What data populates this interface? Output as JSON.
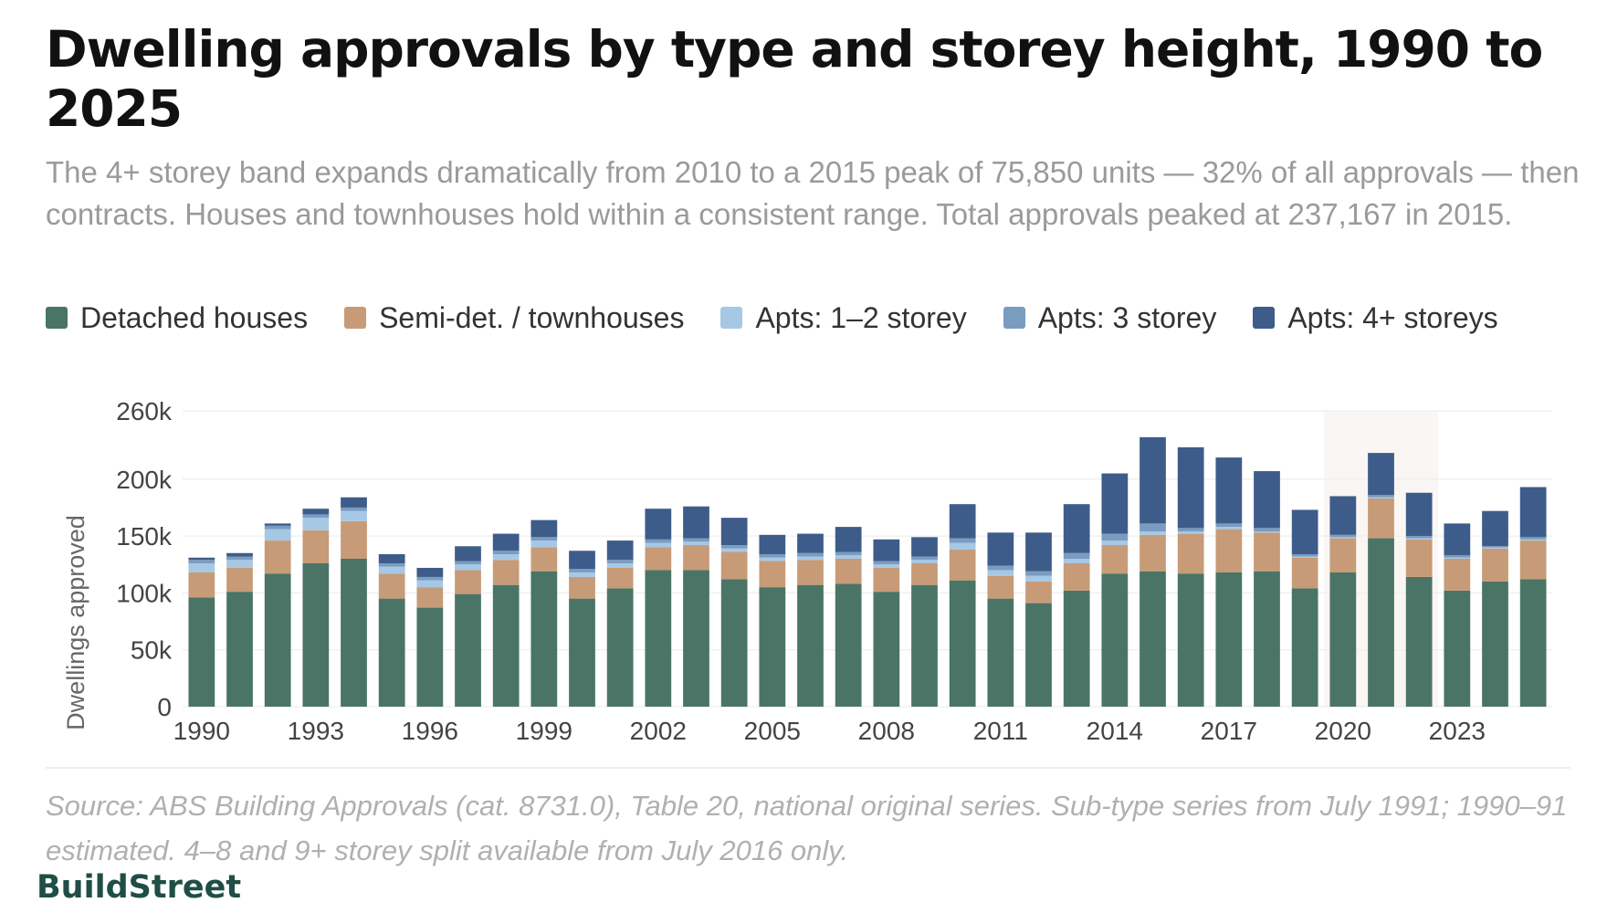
{
  "title": "Dwelling approvals by type and storey height, 1990 to 2025",
  "subtitle": "The 4+ storey band expands dramatically from 2010 to a 2015 peak of 75,850 units — 32% of all approvals — then contracts. Houses and townhouses hold within a consistent range. Total approvals peaked at 237,167 in 2015.",
  "source": "Source: ABS Building Approvals (cat. 8731.0), Table 20, national original series. Sub-type series from July 1991; 1990–91 estimated. 4–8 and 9+ storey split available from July 2016 only.",
  "brand": "BuildStreet",
  "chart_data": {
    "type": "bar",
    "stacked": true,
    "ylabel": "Dwellings approved",
    "xlabel": "",
    "ylim": [
      0,
      260000
    ],
    "yticks": [
      0,
      50000,
      100000,
      150000,
      200000,
      260000
    ],
    "ytick_labels": [
      "0",
      "50k",
      "100k",
      "150k",
      "200k",
      "260k"
    ],
    "xtick_labels": [
      "1990",
      "1993",
      "1996",
      "1999",
      "2002",
      "2005",
      "2008",
      "2011",
      "2014",
      "2017",
      "2020",
      "2023"
    ],
    "grid": true,
    "legend_position": "top-left",
    "highlight": {
      "from": "2020",
      "to": "2022",
      "color": "#faf6f3"
    },
    "categories": [
      "1990",
      "1991",
      "1992",
      "1993",
      "1994",
      "1995",
      "1996",
      "1997",
      "1998",
      "1999",
      "2000",
      "2001",
      "2002",
      "2003",
      "2004",
      "2005",
      "2006",
      "2007",
      "2008",
      "2009",
      "2010",
      "2011",
      "2012",
      "2013",
      "2014",
      "2015",
      "2016",
      "2017",
      "2018",
      "2019",
      "2020",
      "2021",
      "2022",
      "2023",
      "2024",
      "2025"
    ],
    "series": [
      {
        "name": "Detached houses",
        "color": "#4a7566",
        "values": [
          96000,
          101000,
          117000,
          126000,
          130000,
          95000,
          87000,
          99000,
          107000,
          119000,
          95000,
          104000,
          120000,
          120000,
          112000,
          105000,
          107000,
          108000,
          101000,
          107000,
          111000,
          95000,
          91000,
          102000,
          117000,
          119000,
          117000,
          118000,
          119000,
          104000,
          118000,
          148000,
          114000,
          102000,
          110000,
          112000
        ]
      },
      {
        "name": "Semi-det. / townhouses",
        "color": "#c79b77",
        "values": [
          22000,
          21000,
          29000,
          29000,
          33000,
          22000,
          18000,
          21000,
          22000,
          21000,
          19000,
          18000,
          20000,
          22000,
          24000,
          23000,
          22000,
          22000,
          21000,
          19000,
          27000,
          20000,
          19000,
          24000,
          25000,
          32000,
          35000,
          38000,
          34000,
          27000,
          30000,
          35000,
          33000,
          28000,
          29000,
          34000
        ]
      },
      {
        "name": "Apts: 1–2 storey",
        "color": "#a6c8e4",
        "values": [
          8000,
          7000,
          10000,
          11000,
          9000,
          6000,
          6000,
          5000,
          5000,
          6000,
          4000,
          4000,
          4000,
          3000,
          3000,
          3000,
          3000,
          3000,
          3000,
          3000,
          6000,
          5000,
          5000,
          4000,
          4000,
          3000,
          2000,
          2000,
          1000,
          1000,
          1000,
          1000,
          1000,
          1000,
          1000,
          1000
        ]
      },
      {
        "name": "Apts: 3 storey",
        "color": "#7a9cc1",
        "values": [
          3000,
          3000,
          3000,
          3000,
          3000,
          3000,
          3000,
          3000,
          3000,
          3000,
          3000,
          3000,
          3000,
          3000,
          3000,
          3000,
          3000,
          3000,
          3000,
          3000,
          4000,
          4000,
          4000,
          5000,
          6000,
          7000,
          3000,
          3000,
          3000,
          2000,
          2000,
          2000,
          2000,
          2000,
          1000,
          2000
        ]
      },
      {
        "name": "Apts: 4+ storeys",
        "color": "#3e5c8a",
        "values": [
          2000,
          3000,
          2000,
          5000,
          9000,
          8000,
          8000,
          13000,
          15000,
          15000,
          16000,
          17000,
          27000,
          28000,
          24000,
          17000,
          17000,
          22000,
          19000,
          17000,
          30000,
          29000,
          34000,
          43000,
          53000,
          75850,
          71000,
          58000,
          50000,
          39000,
          34000,
          37000,
          38000,
          28000,
          31000,
          44000
        ]
      }
    ]
  }
}
